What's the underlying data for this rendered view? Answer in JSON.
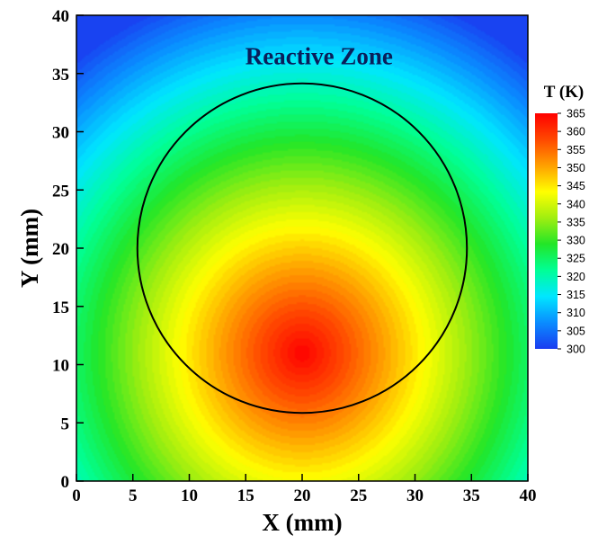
{
  "chart_data": {
    "type": "heatmap",
    "title": "",
    "xlabel": "X (mm)",
    "ylabel": "Y (mm)",
    "xlim": [
      0,
      40
    ],
    "ylim": [
      0,
      40
    ],
    "x_ticks": [
      0,
      5,
      10,
      15,
      20,
      25,
      30,
      35,
      40
    ],
    "y_ticks": [
      0,
      5,
      10,
      15,
      20,
      25,
      30,
      35,
      40
    ],
    "x_tick_labels": [
      "0",
      "5",
      "10",
      "15",
      "20",
      "25",
      "30",
      "35",
      "40"
    ],
    "y_tick_labels": [
      "0",
      "5",
      "10",
      "15",
      "20",
      "25",
      "30",
      "35",
      "40"
    ],
    "variable": "T (K)",
    "value_range": [
      300,
      365
    ],
    "field_model": {
      "hot_spot_center": [
        20,
        11
      ],
      "peak_value": 365,
      "min_value": 301
    },
    "colorbar": {
      "title": "T (K)",
      "ticks": [
        365,
        360,
        355,
        350,
        345,
        340,
        335,
        330,
        325,
        320,
        315,
        310,
        305,
        300
      ],
      "tick_labels": [
        "365",
        "360",
        "355",
        "350",
        "345",
        "340",
        "335",
        "330",
        "325",
        "320",
        "315",
        "310",
        "305",
        "300"
      ],
      "colors": [
        "#1a3cf0",
        "#0a8cff",
        "#00e6ff",
        "#00ff96",
        "#22e628",
        "#a0ee10",
        "#ffff00",
        "#ffa000",
        "#ff4800",
        "#ff0000"
      ],
      "placement": "right"
    },
    "annotations": [
      {
        "text": "Reactive Zone",
        "x": 21.5,
        "y": 36.5
      }
    ],
    "shapes": [
      {
        "type": "circle",
        "center": [
          20,
          20
        ],
        "radius": 14.6,
        "label": "reactive-zone-boundary"
      }
    ],
    "grid": false
  }
}
